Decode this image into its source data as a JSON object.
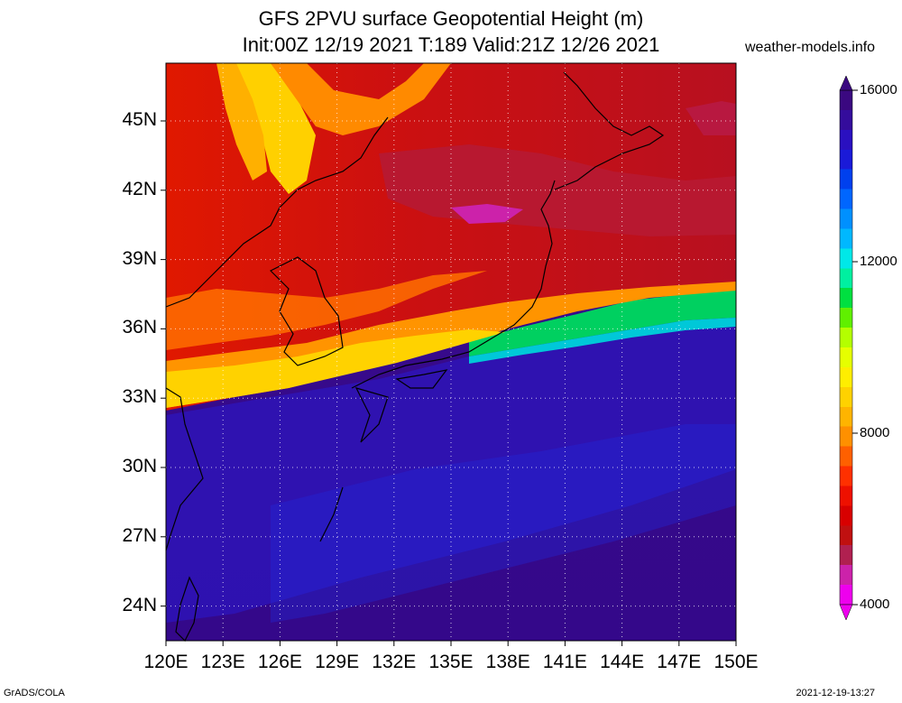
{
  "title": {
    "line1": "GFS 2PVU surface Geopotential Height (m)",
    "line2": "Init:00Z 12/19 2021 T:189 Valid:21Z 12/26 2021"
  },
  "site": "weather-models.info",
  "footer": {
    "left": "GrADS/COLA",
    "right": "2021-12-19-13:27"
  },
  "map": {
    "lat_labels": [
      "45N",
      "42N",
      "39N",
      "36N",
      "33N",
      "30N",
      "27N",
      "24N"
    ],
    "lat_values": [
      45,
      42,
      39,
      36,
      33,
      30,
      27,
      24
    ],
    "lon_labels": [
      "120E",
      "123E",
      "126E",
      "129E",
      "132E",
      "135E",
      "138E",
      "141E",
      "144E",
      "147E",
      "150E"
    ],
    "lon_values": [
      120,
      123,
      126,
      129,
      132,
      135,
      138,
      141,
      144,
      147,
      150
    ]
  },
  "colorbar": {
    "labels": [
      "16000",
      "12000",
      "8000",
      "4000"
    ],
    "colors": [
      "#ee00ee",
      "#cc22aa",
      "#b02050",
      "#c01010",
      "#d80000",
      "#ee1000",
      "#ff3000",
      "#ff6000",
      "#ff9000",
      "#ffb400",
      "#ffd200",
      "#ffee00",
      "#e6ff00",
      "#b4ff00",
      "#60f000",
      "#00e040",
      "#00f0a0",
      "#00e8e8",
      "#00b8ff",
      "#0090ff",
      "#0066ff",
      "#0040ee",
      "#1a1ad8",
      "#2a10c0",
      "#340c9c",
      "#3a0880"
    ]
  }
}
